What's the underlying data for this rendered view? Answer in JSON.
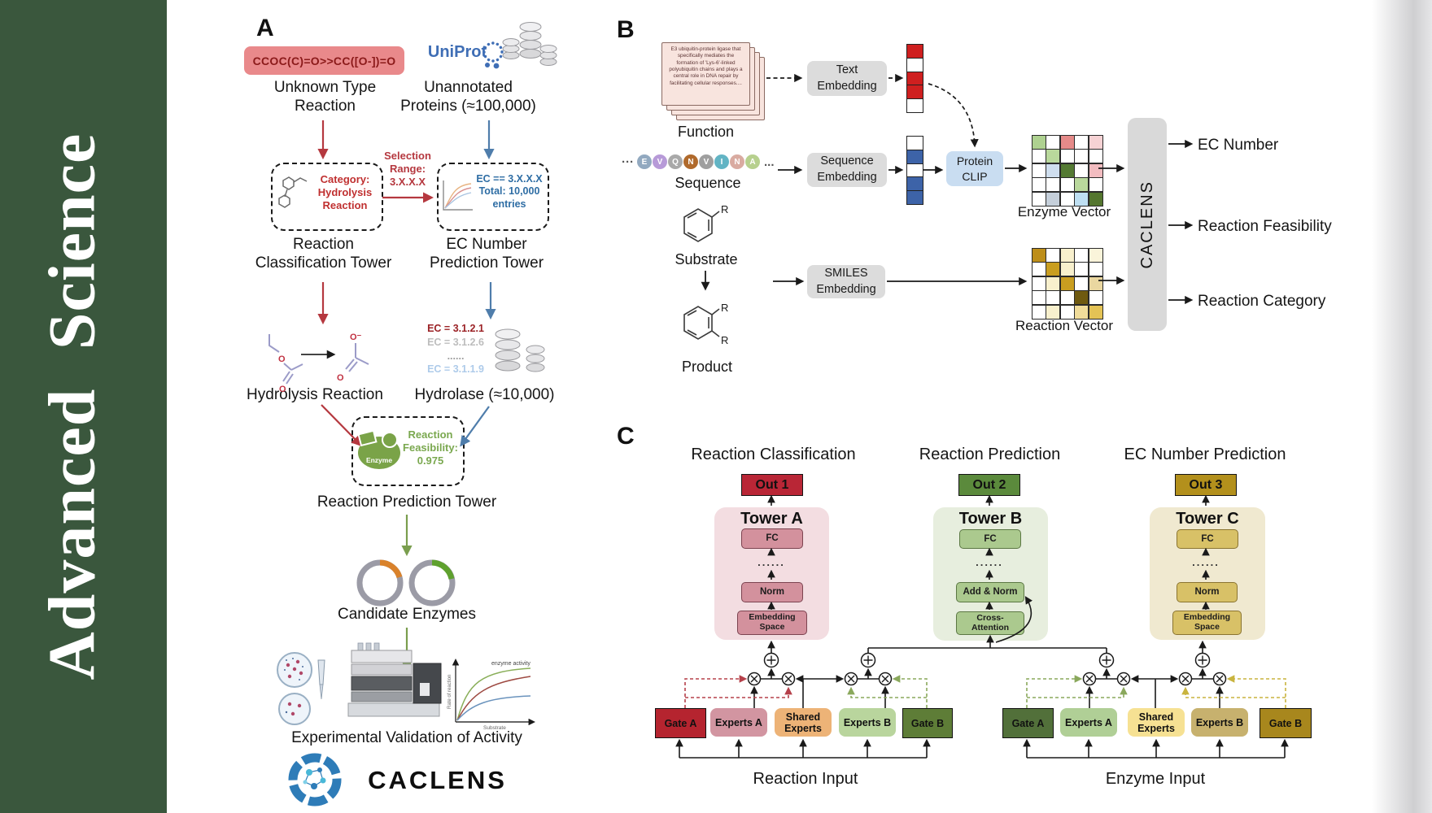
{
  "journal": {
    "title": "Advanced Science"
  },
  "panelA": {
    "label": "A",
    "smiles": "CCOC(C)=O>>CC([O-])=O",
    "unknown_reaction": "Unknown Type\nReaction",
    "uniprot": "UniProt",
    "unannotated": "Unannotated\nProteins (≈100,000)",
    "selection": "Selection\nRange:\n3.X.X.X",
    "category_box": "Category:\nHydrolysis\nReaction",
    "ec_box": "EC == 3.X.X.X\nTotal: 10,000\nentries",
    "classification_tower": "Reaction\nClassification Tower",
    "ec_tower": "EC Number\nPrediction Tower",
    "hydrolysis": "Hydrolysis Reaction",
    "ec_list": [
      {
        "text": "EC = 3.1.2.1",
        "color": "#9b2226"
      },
      {
        "text": "EC = 3.1.2.6",
        "color": "#bdbdbd"
      },
      {
        "text": "......",
        "color": "#9e9e9e"
      },
      {
        "text": "EC = 3.1.1.9",
        "color": "#aecbea"
      }
    ],
    "hydrolase": "Hydrolase (≈10,000)",
    "enzyme_icon_label": "Enzyme",
    "feasibility": "Reaction\nFeasibility:\n0.975",
    "prediction_tower": "Reaction Prediction Tower",
    "candidate": "Candidate Enzymes",
    "validation": "Experimental Validation of Activity",
    "minichart": {
      "curve_label": "enzyme activity",
      "ylabel": "Rate of reaction",
      "xlabel": "Substrate"
    },
    "atom_o": "O",
    "atom_o_minus": "O⁻",
    "logo_text": "CACLENS"
  },
  "panelB": {
    "label": "B",
    "function_card": "E3 ubiquitin-protein ligase that specifically mediates the formation of 'Lys-6'-linked polyubiquitin chains and plays a central role in DNA repair by facilitating cellular responses....",
    "function": "Function",
    "ellipsis_left": "···",
    "ellipsis_right": "...",
    "sequence_letters": [
      {
        "ch": "E",
        "color": "#92a9c0"
      },
      {
        "ch": "V",
        "color": "#b79ad8"
      },
      {
        "ch": "Q",
        "color": "#a9a9a9"
      },
      {
        "ch": "N",
        "color": "#b06a2c"
      },
      {
        "ch": "V",
        "color": "#9f9f9f"
      },
      {
        "ch": "I",
        "color": "#62b4c4"
      },
      {
        "ch": "N",
        "color": "#d9aba1"
      },
      {
        "ch": "A",
        "color": "#b7d08e"
      }
    ],
    "sequence": "Sequence",
    "text_embedding": "Text\nEmbedding",
    "sequence_embedding": "Sequence\nEmbedding",
    "smiles_embedding": "SMILES\nEmbedding",
    "protein_clip": "Protein\nCLIP",
    "substrate": "Substrate",
    "product": "Product",
    "r_label": "R",
    "text_vector": [
      "#cf1f1f",
      "#ffffff",
      "#cf1f1f",
      "#cf1f1f",
      "#ffffff"
    ],
    "seq_vector": [
      "#ffffff",
      "#3d63a8",
      "#ffffff",
      "#3d63a8",
      "#3d63a8"
    ],
    "enzyme_vector_label": "Enzyme Vector",
    "reaction_vector_label": "Reaction Vector",
    "enzyme_grid": [
      [
        "#aed190",
        "#ffffff",
        "#e58a89",
        "#ffffff",
        "#f6d2d4"
      ],
      [
        "#ffffff",
        "#b9d89c",
        "#ffffff",
        "#ffffff",
        "#ffffff"
      ],
      [
        "#ffffff",
        "#cfdeee",
        "#547a33",
        "#ffffff",
        "#f2bcc0"
      ],
      [
        "#ffffff",
        "#ffffff",
        "#ffffff",
        "#b9d89c",
        "#ffffff"
      ],
      [
        "#ffffff",
        "#c5cfda",
        "#ffffff",
        "#bedff2",
        "#54762f"
      ]
    ],
    "reaction_grid": [
      [
        "#bd8e1a",
        "#ffffff",
        "#f8f0cd",
        "#ffffff",
        "#faf4da"
      ],
      [
        "#ffffff",
        "#c99e20",
        "#f8f0cd",
        "#ffffff",
        "#ffffff"
      ],
      [
        "#ffffff",
        "#f8f0cd",
        "#c99e20",
        "#ffffff",
        "#ead7a0"
      ],
      [
        "#ffffff",
        "#ffffff",
        "#ffffff",
        "#6f5a10",
        "#ffffff"
      ],
      [
        "#ffffff",
        "#f8f0cd",
        "#ffffff",
        "#f0dc9a",
        "#e4c355"
      ]
    ],
    "caclens": "CACLENS",
    "outputs": [
      "EC Number",
      "Reaction Feasibility",
      "Reaction Category"
    ]
  },
  "panelC": {
    "label": "C",
    "headings": [
      "Reaction Classification",
      "Reaction Prediction",
      "EC Number Prediction"
    ],
    "dots": "......",
    "towers": [
      {
        "out": "Out 1",
        "name": "Tower A",
        "fc": "FC",
        "mid": "Norm",
        "base": "Embedding\nSpace"
      },
      {
        "out": "Out 2",
        "name": "Tower B",
        "fc": "FC",
        "mid": "Add & Norm",
        "base": "Cross-\nAttention"
      },
      {
        "out": "Out 3",
        "name": "Tower C",
        "fc": "FC",
        "mid": "Norm",
        "base": "Embedding\nSpace"
      }
    ],
    "moe_left": {
      "gate_a": "Gate A",
      "experts_a": "Experts A",
      "shared": "Shared\nExperts",
      "experts_b": "Experts B",
      "gate_b": "Gate B",
      "input": "Reaction Input"
    },
    "moe_right": {
      "gate_a": "Gate A",
      "experts_a": "Experts A",
      "shared": "Shared\nExperts",
      "experts_b": "Experts B",
      "gate_b": "Gate B",
      "input": "Enzyme Input"
    }
  },
  "colors": {
    "sidebar_green": "#3a573d",
    "arrow_red": "#b5383f",
    "arrow_blue": "#4f7dab",
    "arrow_green": "#7a9e4e",
    "gate_a_left": "#b5242f",
    "experts_a_left": "#d295a1",
    "shared_left": "#edb377",
    "experts_b_left": "#b9d59d",
    "gate_b_left": "#5e7d37",
    "gate_a_right": "#52703a",
    "experts_a_right": "#b0cf96",
    "shared_right": "#f6e193",
    "experts_b_right": "#c7b16e",
    "gate_b_right": "#a8871d"
  }
}
